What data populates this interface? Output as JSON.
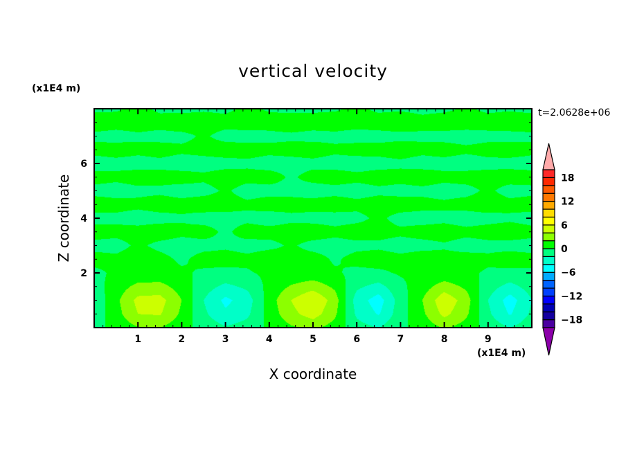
{
  "chart_data": {
    "type": "heatmap",
    "subtype": "filled-contour",
    "title": "vertical velocity",
    "xlabel": "X coordinate",
    "ylabel": "Z coordinate",
    "x_unit": "(x1E4 m)",
    "y_unit": "(x1E4 m)",
    "annotation": "t=2.0628e+06",
    "xlim": [
      0,
      10
    ],
    "ylim": [
      0,
      8
    ],
    "x_ticks": [
      1,
      2,
      3,
      4,
      5,
      6,
      7,
      8,
      9
    ],
    "y_ticks": [
      2,
      4,
      6
    ],
    "colorbar": {
      "levels": [
        -20,
        -18,
        -16,
        -14,
        -12,
        -10,
        -8,
        -6,
        -4,
        -2,
        0,
        2,
        4,
        6,
        8,
        10,
        12,
        14,
        16,
        18,
        20
      ],
      "tick_labels": [
        "18",
        "12",
        "6",
        "0",
        "-6",
        "-12",
        "-18"
      ],
      "tick_values": [
        18,
        12,
        6,
        0,
        -6,
        -12,
        -18
      ],
      "colors": [
        "#4a00a0",
        "#1400a0",
        "#0000b4",
        "#0000ff",
        "#0040ff",
        "#0064ff",
        "#00aaff",
        "#00ffff",
        "#00ffc8",
        "#00ff80",
        "#00ff00",
        "#8cff00",
        "#ccff00",
        "#ffff00",
        "#ffdc00",
        "#ffaa00",
        "#ff7800",
        "#ff5a00",
        "#ff2800",
        "#ff2828"
      ],
      "over_color": "#ffaaaa",
      "under_color": "#8c00aa"
    },
    "grid_x": [
      0,
      0.5,
      1,
      1.5,
      2,
      2.5,
      3,
      3.5,
      4,
      4.5,
      5,
      5.5,
      6,
      6.5,
      7,
      7.5,
      8,
      8.5,
      9,
      9.5,
      10
    ],
    "grid_z": [
      0,
      0.5,
      1,
      1.5,
      2,
      2.5,
      3,
      3.5,
      4,
      4.5,
      5,
      5.5,
      6,
      6.5,
      7,
      7.5,
      8
    ],
    "values": [
      [
        -0.6,
        0.6,
        1.9,
        2.0,
        0.8,
        -0.8,
        -1.8,
        -1.2,
        0.4,
        1.7,
        2.4,
        1.2,
        -1.2,
        -2.0,
        -0.4,
        0.8,
        2.2,
        1.2,
        -0.8,
        -2.0,
        -0.8
      ],
      [
        -1.2,
        1.2,
        4.0,
        4.2,
        1.6,
        -1.6,
        -3.6,
        -2.4,
        0.8,
        3.4,
        5.0,
        2.4,
        -2.4,
        -4.2,
        -0.8,
        1.6,
        4.6,
        2.4,
        -1.6,
        -4.2,
        -1.6
      ],
      [
        -1.5,
        1.5,
        4.6,
        4.8,
        2.0,
        -2.0,
        -4.5,
        -3.0,
        1.0,
        4.0,
        6.0,
        3.0,
        -3.0,
        -5.0,
        -1.0,
        2.0,
        5.5,
        3.0,
        -2.0,
        -5.0,
        -2.0
      ],
      [
        -0.8,
        0.9,
        2.6,
        2.7,
        1.1,
        -1.1,
        -2.5,
        -1.6,
        0.6,
        2.2,
        3.2,
        1.6,
        -1.6,
        -2.7,
        -0.5,
        1.1,
        3.0,
        1.6,
        -1.1,
        -2.7,
        -1.1
      ],
      [
        -0.4,
        0.3,
        0.5,
        0.6,
        0.3,
        -0.3,
        -0.5,
        -0.2,
        0.4,
        0.5,
        0.6,
        0.2,
        -0.4,
        -0.3,
        0.2,
        0.3,
        0.5,
        0.3,
        -0.2,
        -0.4,
        -0.3
      ],
      [
        0.6,
        0.4,
        0.8,
        0.5,
        -0.3,
        0.6,
        0.7,
        0.4,
        0.9,
        0.5,
        0.6,
        -0.2,
        0.5,
        0.7,
        0.4,
        0.8,
        0.5,
        0.6,
        0.3,
        0.7,
        0.5
      ],
      [
        -0.5,
        -0.6,
        0.3,
        -0.4,
        -0.7,
        -0.5,
        -0.3,
        -0.6,
        -0.4,
        0.2,
        -0.5,
        -0.6,
        -0.4,
        -0.3,
        -0.6,
        -0.5,
        -0.2,
        -0.6,
        -0.4,
        -0.5,
        -0.6
      ],
      [
        0.7,
        0.5,
        0.6,
        0.8,
        0.4,
        0.6,
        -0.3,
        0.7,
        0.5,
        0.6,
        0.8,
        0.4,
        0.7,
        0.5,
        0.3,
        0.6,
        0.7,
        0.4,
        0.6,
        0.8,
        0.5
      ],
      [
        -0.6,
        -0.4,
        -0.7,
        -0.5,
        -0.2,
        -0.6,
        -0.5,
        -0.4,
        -0.7,
        -0.3,
        -0.5,
        -0.6,
        -0.4,
        0.3,
        -0.5,
        -0.6,
        -0.4,
        -0.7,
        -0.5,
        -0.3,
        -0.6
      ],
      [
        0.8,
        0.6,
        0.4,
        0.7,
        0.5,
        0.8,
        0.6,
        0.3,
        0.7,
        0.5,
        0.6,
        0.8,
        0.4,
        0.6,
        0.7,
        0.5,
        0.3,
        0.6,
        0.8,
        0.5,
        0.7
      ],
      [
        -0.5,
        -0.7,
        -0.4,
        -0.3,
        -0.6,
        -0.5,
        0.2,
        -0.6,
        -0.5,
        -0.4,
        -0.7,
        -0.5,
        -0.6,
        -0.3,
        -0.5,
        -0.4,
        -0.6,
        -0.5,
        0.3,
        -0.6,
        -0.4
      ],
      [
        0.6,
        0.4,
        0.7,
        0.5,
        0.6,
        0.3,
        0.7,
        0.5,
        0.6,
        -0.2,
        0.5,
        0.7,
        0.4,
        0.6,
        0.5,
        0.8,
        0.4,
        0.6,
        0.5,
        0.7,
        0.6
      ],
      [
        -0.7,
        -0.5,
        -0.6,
        -0.4,
        -0.7,
        -0.6,
        -0.5,
        -0.3,
        -0.6,
        -0.5,
        -0.4,
        -0.6,
        -0.7,
        -0.5,
        -0.3,
        -0.6,
        -0.5,
        -0.7,
        -0.4,
        -0.5,
        -0.6
      ],
      [
        0.5,
        0.7,
        0.4,
        0.6,
        0.3,
        0.5,
        0.7,
        0.6,
        0.4,
        0.5,
        0.7,
        0.3,
        0.6,
        0.5,
        0.7,
        0.4,
        0.6,
        0.3,
        0.5,
        0.7,
        0.4
      ],
      [
        -0.4,
        -0.6,
        -0.3,
        -0.5,
        -0.4,
        0.2,
        -0.5,
        -0.6,
        -0.4,
        -0.3,
        -0.5,
        -0.4,
        -0.6,
        -0.5,
        -0.4,
        -0.3,
        -0.5,
        -0.6,
        -0.4,
        -0.5,
        -0.3
      ],
      [
        0.9,
        0.7,
        0.8,
        0.6,
        0.9,
        0.7,
        0.5,
        0.8,
        0.6,
        0.9,
        0.7,
        0.8,
        0.6,
        0.7,
        0.9,
        0.5,
        0.8,
        0.7,
        0.6,
        0.9,
        0.8
      ],
      [
        -0.3,
        -0.2,
        0.4,
        -0.3,
        -0.4,
        -0.2,
        -0.3,
        0.3,
        -0.2,
        -0.4,
        -0.3,
        -0.2,
        0.3,
        -0.3,
        -0.2,
        -0.4,
        -0.3,
        0.2,
        -0.3,
        -0.2,
        -0.4
      ]
    ]
  }
}
